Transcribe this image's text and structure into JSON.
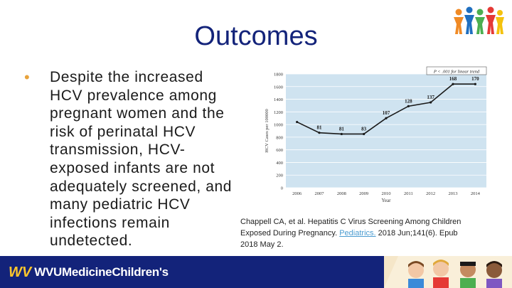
{
  "slide": {
    "title": "Outcomes",
    "bullet": "Despite the increased HCV prevalence among pregnant women and the risk of perinatal HCV transmission, HCV-exposed infants are not adequately screened, and many pediatric HCV infections remain undetected.",
    "bullet_lines": [
      "Despite the increased",
      "HCV prevalence among",
      "pregnant women and the",
      "risk of perinatal HCV",
      "transmission, HCV-",
      "exposed infants are not",
      "adequately screened, and",
      "many pediatric HCV",
      "infections remain",
      "undetected."
    ],
    "citation": {
      "line1": "Chappell CA, et al. Hepatitis C Virus Screening Among Children",
      "line2_prefix": "Exposed During Pregnancy. ",
      "journal": "Pediatrics.",
      "line2_suffix": " 2018 Jun;141(6). Epub",
      "line3": "2018 May 2."
    }
  },
  "footer": {
    "brand_mark": "WV",
    "brand_text": "WVUMedicineChildren's"
  },
  "colors": {
    "title": "#13237a",
    "bullet": "#e8a33c",
    "chart_bg": "#cfe3f0",
    "line": "#1a1a1a",
    "footer_bg": "#13237a",
    "brand_gold": "#ffc72c",
    "link": "#4a9bd0"
  },
  "chart_data": {
    "type": "line",
    "x": [
      2006,
      2007,
      2008,
      2009,
      2010,
      2011,
      2012,
      2013,
      2014
    ],
    "values": [
      1040,
      870,
      850,
      850,
      1100,
      1290,
      1350,
      1640,
      1640
    ],
    "point_labels": [
      "",
      "81",
      "81",
      "83",
      "107",
      "128",
      "137",
      "168",
      "170"
    ],
    "xlabel": "Year",
    "ylabel": "HCV Cases per 100000",
    "ylim": [
      0,
      1800
    ],
    "yticks": [
      0,
      200,
      400,
      600,
      800,
      1000,
      1200,
      1400,
      1600,
      1800
    ],
    "annotation": "P < .001 for linear trend",
    "grid": true
  }
}
